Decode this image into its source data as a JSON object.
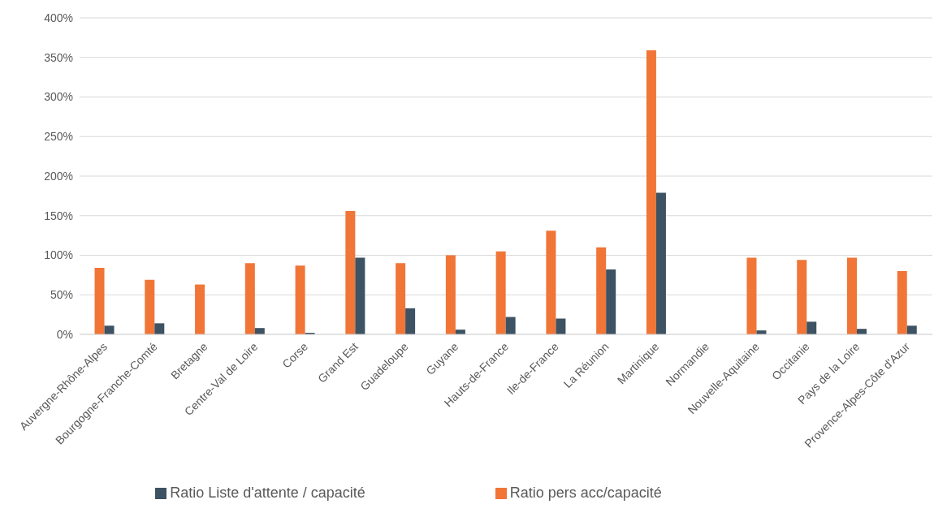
{
  "chart_data": {
    "type": "bar",
    "categories": [
      "Auvergne-Rhône-Alpes",
      "Bourgogne-Franche-Comté",
      "Bretagne",
      "Centre-Val de Loire",
      "Corse",
      "Grand Est",
      "Guadeloupe",
      "Guyane",
      "Hauts-de-France",
      "Ile-de-France",
      "La Réunion",
      "Martinique",
      "Normandie",
      "Nouvelle-Aquitaine",
      "Occitanie",
      "Pays de la Loire",
      "Provence-Alpes-Côte d'Azur"
    ],
    "series": [
      {
        "name": "Ratio pers acc/capacité",
        "color": "#f07536",
        "values": [
          84,
          69,
          63,
          90,
          87,
          156,
          90,
          100,
          105,
          131,
          110,
          359,
          0,
          97,
          94,
          97,
          80
        ]
      },
      {
        "name": "Ratio Liste d'attente / capacité",
        "color": "#3d5262",
        "values": [
          11,
          14,
          0,
          8,
          2,
          97,
          33,
          6,
          22,
          20,
          82,
          179,
          0,
          5,
          16,
          7,
          11
        ]
      }
    ],
    "ylim": [
      0,
      400
    ],
    "yticks": [
      {
        "value": 0,
        "label": "0%"
      },
      {
        "value": 50,
        "label": "50%"
      },
      {
        "value": 100,
        "label": "100%"
      },
      {
        "value": 150,
        "label": "150%"
      },
      {
        "value": 200,
        "label": "200%"
      },
      {
        "value": 250,
        "label": "250%"
      },
      {
        "value": 300,
        "label": "300%"
      },
      {
        "value": 350,
        "label": "350%"
      },
      {
        "value": 400,
        "label": "400%"
      }
    ],
    "grid": "y",
    "legend": "bottom"
  }
}
